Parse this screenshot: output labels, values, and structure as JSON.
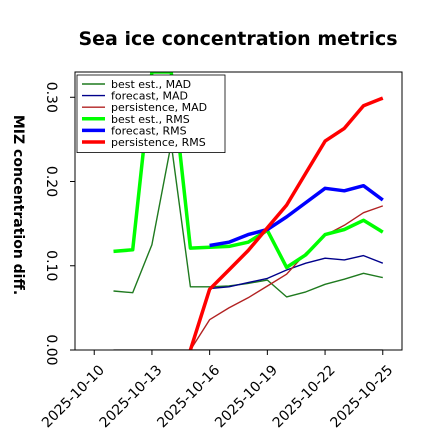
{
  "chart_data": {
    "type": "line",
    "title": "Sea ice concentration metrics",
    "ylabel": "MIZ concentration diff.",
    "xlabel": "",
    "ylim": [
      0.0,
      0.33
    ],
    "yticks": [
      0.0,
      0.1,
      0.2,
      0.3
    ],
    "ytick_labels": [
      "0.00",
      "0.10",
      "0.20",
      "0.30"
    ],
    "xlim": [
      "2025-10-09",
      "2025-10-26"
    ],
    "xticks": [
      "2025-10-10",
      "2025-10-13",
      "2025-10-16",
      "2025-10-19",
      "2025-10-22",
      "2025-10-25"
    ],
    "xtick_colors": [
      "#000000",
      "#000000",
      "#228b22",
      "#000000",
      "#000000",
      "#000000"
    ],
    "legend_position": "upper-left",
    "grid": false,
    "series": [
      {
        "name": "best est., MAD",
        "color": "#1f7a1f",
        "width": "thin",
        "x": [
          "2025-10-11",
          "2025-10-12",
          "2025-10-13",
          "2025-10-14",
          "2025-10-15",
          "2025-10-16",
          "2025-10-17",
          "2025-10-18",
          "2025-10-19",
          "2025-10-20",
          "2025-10-21",
          "2025-10-22",
          "2025-10-23",
          "2025-10-24",
          "2025-10-25"
        ],
        "values": [
          0.07,
          0.068,
          0.125,
          0.245,
          0.075,
          0.075,
          0.076,
          0.079,
          0.083,
          0.063,
          0.069,
          0.078,
          0.084,
          0.091,
          0.086
        ]
      },
      {
        "name": "forecast,  MAD",
        "color": "#00008b",
        "width": "thin",
        "x": [
          "2025-10-16",
          "2025-10-17",
          "2025-10-18",
          "2025-10-19",
          "2025-10-20",
          "2025-10-21",
          "2025-10-22",
          "2025-10-23",
          "2025-10-24",
          "2025-10-25"
        ],
        "values": [
          0.073,
          0.075,
          0.08,
          0.085,
          0.095,
          0.103,
          0.109,
          0.107,
          0.112,
          0.103
        ]
      },
      {
        "name": "persistence, MAD",
        "color": "#b22222",
        "width": "thin",
        "x": [
          "2025-10-15",
          "2025-10-16",
          "2025-10-17",
          "2025-10-18",
          "2025-10-19",
          "2025-10-20",
          "2025-10-21",
          "2025-10-22",
          "2025-10-23",
          "2025-10-24",
          "2025-10-25"
        ],
        "values": [
          0.0,
          0.036,
          0.05,
          0.062,
          0.076,
          0.09,
          0.115,
          0.136,
          0.148,
          0.163,
          0.171
        ]
      },
      {
        "name": "best est., RMS",
        "color": "#00ff00",
        "width": "thick",
        "x": [
          "2025-10-11",
          "2025-10-12",
          "2025-10-13",
          "2025-10-14",
          "2025-10-15",
          "2025-10-16",
          "2025-10-17",
          "2025-10-18",
          "2025-10-19",
          "2025-10-20",
          "2025-10-21",
          "2025-10-22",
          "2025-10-23",
          "2025-10-24",
          "2025-10-25"
        ],
        "values": [
          0.117,
          0.119,
          0.33,
          0.33,
          0.121,
          0.122,
          0.123,
          0.128,
          0.142,
          0.098,
          0.113,
          0.137,
          0.143,
          0.154,
          0.14
        ]
      },
      {
        "name": "forecast,  RMS",
        "color": "#0000ff",
        "width": "thick",
        "x": [
          "2025-10-16",
          "2025-10-17",
          "2025-10-18",
          "2025-10-19",
          "2025-10-20",
          "2025-10-21",
          "2025-10-22",
          "2025-10-23",
          "2025-10-24",
          "2025-10-25"
        ],
        "values": [
          0.124,
          0.128,
          0.137,
          0.143,
          0.158,
          0.175,
          0.192,
          0.189,
          0.195,
          0.178
        ]
      },
      {
        "name": "persistence, RMS",
        "color": "#ff0000",
        "width": "thick",
        "x": [
          "2025-10-15",
          "2025-10-16",
          "2025-10-17",
          "2025-10-18",
          "2025-10-19",
          "2025-10-20",
          "2025-10-21",
          "2025-10-22",
          "2025-10-23",
          "2025-10-24",
          "2025-10-25"
        ],
        "values": [
          0.0,
          0.072,
          0.095,
          0.118,
          0.145,
          0.172,
          0.21,
          0.248,
          0.263,
          0.29,
          0.299
        ]
      },
      {
        "name": "",
        "color": "#808080",
        "width": "thin",
        "x": [
          "2025-10-11",
          "2025-10-25"
        ],
        "values": [
          0.0,
          0.0
        ]
      }
    ]
  }
}
